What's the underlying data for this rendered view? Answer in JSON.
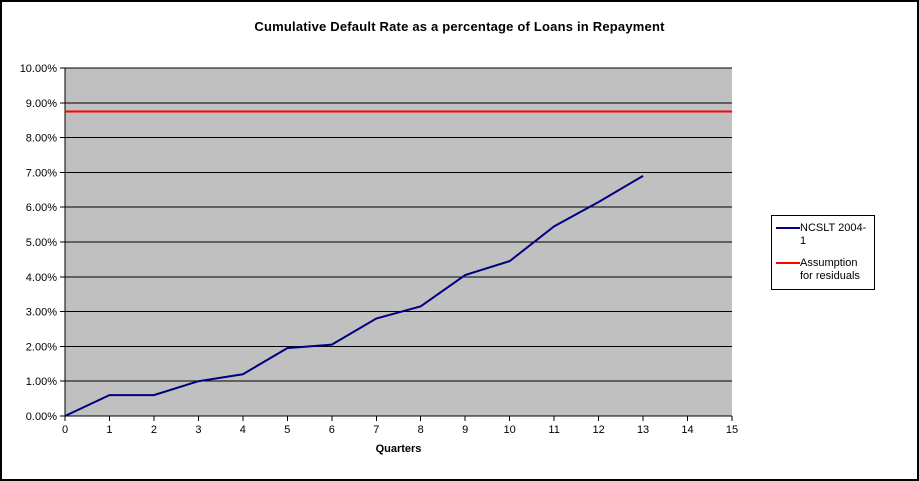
{
  "window": {
    "background": "#FFFFFF",
    "border_color": "#000000"
  },
  "chart_data": {
    "type": "line",
    "title": "Cumulative Default Rate as a percentage of Loans in Repayment",
    "xlabel": "Quarters",
    "ylabel": "",
    "xlim": [
      0,
      15
    ],
    "ylim_percent": [
      0,
      10
    ],
    "x_ticks": [
      "0",
      "1",
      "2",
      "3",
      "4",
      "5",
      "6",
      "7",
      "8",
      "9",
      "10",
      "11",
      "12",
      "13",
      "14",
      "15"
    ],
    "y_ticks": [
      "0.00%",
      "1.00%",
      "2.00%",
      "3.00%",
      "4.00%",
      "5.00%",
      "6.00%",
      "7.00%",
      "8.00%",
      "9.00%",
      "10.00%"
    ],
    "grid": "horizontal",
    "plot_background": "#C0C0C0",
    "gridline_color": "#000000",
    "axis_color": "#000000",
    "legend_position": "right",
    "series": [
      {
        "name": "NCSLT 2004-1",
        "type": "line",
        "color": "#000080",
        "x": [
          0,
          1,
          2,
          3,
          4,
          5,
          6,
          7,
          8,
          9,
          10,
          11,
          12,
          13
        ],
        "y_percent": [
          0.0,
          0.6,
          0.6,
          1.0,
          1.2,
          1.95,
          2.05,
          2.8,
          3.15,
          4.05,
          4.45,
          5.45,
          6.15,
          6.9
        ]
      },
      {
        "name": "Assumption for residuals",
        "type": "hline",
        "color": "#FF0000",
        "y_percent": 8.75
      }
    ]
  }
}
